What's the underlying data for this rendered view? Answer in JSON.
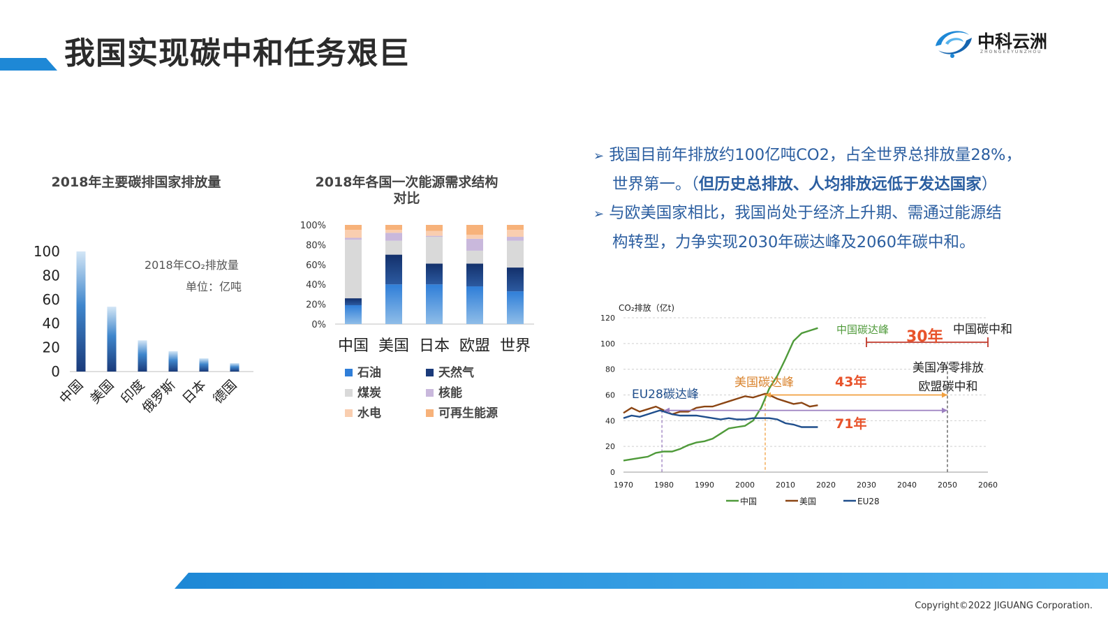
{
  "header": {
    "title": "我国实现碳中和任务艰巨",
    "logo_text": "中科云洲",
    "logo_sub": "ZHONGKEYUNZHOU"
  },
  "footer": {
    "copyright": "Copyright©2022 JIGUANG Corporation."
  },
  "bullets": [
    {
      "line1": "我国目前年排放约100亿吨CO2，占全世界总排放量28%，",
      "line2_plain": "世界第一。（",
      "line2_bold": "但历史总排放、人均排放远低于发达国家",
      "line2_end": "）"
    },
    {
      "line1": "与欧美国家相比，我国尚处于经济上升期、需通过能源结",
      "line2": "构转型，力争实现2030年碳达峰及2060年碳中和。"
    }
  ],
  "colors": {
    "blue_dark": "#1a3a7a",
    "blue_mid": "#2f7ed8",
    "coal": "#d9d9d9",
    "nuclear": "#c9b8dc",
    "hydro": "#f9ceb0",
    "renewable": "#f7b27a",
    "china": "#4f9a3a",
    "usa": "#8b4513",
    "eu": "#1f4e8c",
    "annotation_red": "#e8532b",
    "annotation_orange": "#f0a040",
    "annotation_purple": "#9b7fc0",
    "accent_blue": "#1e88d6"
  },
  "chart_data": [
    {
      "type": "bar",
      "title": "2018年主要碳排国家排放量",
      "annotation_line1": "2018年CO₂排放量",
      "annotation_line2": "单位：亿吨",
      "categories": [
        "中国",
        "美国",
        "印度",
        "俄罗斯",
        "日本",
        "德国"
      ],
      "values": [
        100,
        54,
        26,
        17,
        11,
        7
      ],
      "ylim": [
        0,
        100
      ],
      "yticks": [
        0,
        20,
        40,
        60,
        80,
        100
      ]
    },
    {
      "type": "bar",
      "stacked": true,
      "title_line1": "2018年各国一次能源需求结构",
      "title_line2": "对比",
      "categories": [
        "中国",
        "美国",
        "日本",
        "欧盟",
        "世界"
      ],
      "yticks": [
        "0%",
        "20%",
        "40%",
        "60%",
        "80%",
        "100%"
      ],
      "series": [
        {
          "name": "石油",
          "values": [
            19,
            40,
            40,
            38,
            33
          ]
        },
        {
          "name": "天然气",
          "values": [
            7,
            30,
            21,
            23,
            24
          ]
        },
        {
          "name": "煤炭",
          "values": [
            59,
            14,
            27,
            13,
            27
          ]
        },
        {
          "name": "核能",
          "values": [
            2,
            8,
            1,
            12,
            4
          ]
        },
        {
          "name": "水电",
          "values": [
            8,
            3,
            5,
            4,
            7
          ]
        },
        {
          "name": "可再生能源",
          "values": [
            5,
            5,
            6,
            10,
            5
          ]
        }
      ]
    },
    {
      "type": "line",
      "ylabel": "CO₂排放（亿t)",
      "xlim": [
        1970,
        2060
      ],
      "ylim": [
        0,
        120
      ],
      "xticks": [
        1970,
        1980,
        1990,
        2000,
        2010,
        2020,
        2030,
        2040,
        2050,
        2060
      ],
      "yticks": [
        0,
        20,
        40,
        60,
        80,
        100,
        120
      ],
      "series": [
        {
          "name": "中国",
          "x": [
            1970,
            1972,
            1974,
            1976,
            1978,
            1980,
            1982,
            1984,
            1986,
            1988,
            1990,
            1992,
            1994,
            1996,
            1998,
            2000,
            2002,
            2004,
            2006,
            2008,
            2010,
            2012,
            2014,
            2016,
            2018
          ],
          "y": [
            9,
            10,
            11,
            12,
            15,
            16,
            16,
            18,
            21,
            23,
            24,
            26,
            30,
            34,
            35,
            36,
            40,
            50,
            65,
            75,
            88,
            102,
            108,
            110,
            112
          ]
        },
        {
          "name": "美国",
          "x": [
            1970,
            1972,
            1974,
            1976,
            1978,
            1980,
            1982,
            1984,
            1986,
            1988,
            1990,
            1992,
            1994,
            1996,
            1998,
            2000,
            2002,
            2004,
            2005,
            2006,
            2008,
            2010,
            2012,
            2014,
            2016,
            2018
          ],
          "y": [
            46,
            50,
            47,
            49,
            51,
            48,
            45,
            47,
            47,
            50,
            51,
            51,
            53,
            55,
            57,
            59,
            58,
            60,
            61,
            60,
            57,
            55,
            53,
            54,
            51,
            52
          ]
        },
        {
          "name": "EU28",
          "x": [
            1970,
            1972,
            1974,
            1976,
            1978,
            1979,
            1980,
            1982,
            1984,
            1986,
            1988,
            1990,
            1992,
            1994,
            1996,
            1998,
            2000,
            2002,
            2004,
            2006,
            2008,
            2010,
            2012,
            2014,
            2016,
            2018
          ],
          "y": [
            42,
            44,
            43,
            45,
            47,
            48,
            47,
            45,
            44,
            44,
            44,
            43,
            42,
            41,
            42,
            41,
            41,
            42,
            42,
            42,
            41,
            38,
            37,
            35,
            35,
            35
          ]
        }
      ],
      "annotations": {
        "cn_peak": "中国碳达峰",
        "gap30": "30年",
        "cn_neutral": "中国碳中和",
        "us_peak": "美国碳达峰",
        "gap43": "43年",
        "us_zero_1": "美国净零排放",
        "us_zero_2": "欧盟碳中和",
        "eu_peak": "EU28碳达峰",
        "gap71": "71年"
      }
    }
  ]
}
